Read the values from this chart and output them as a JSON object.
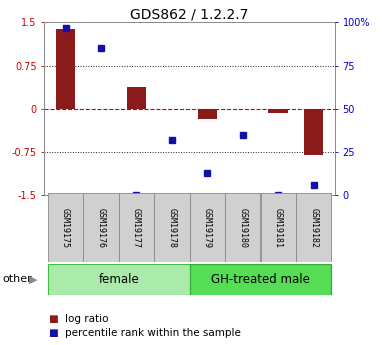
{
  "title": "GDS862 / 1.2.2.7",
  "samples": [
    "GSM19175",
    "GSM19176",
    "GSM19177",
    "GSM19178",
    "GSM19179",
    "GSM19180",
    "GSM19181",
    "GSM19182"
  ],
  "log_ratios": [
    1.38,
    0.0,
    0.38,
    0.0,
    -0.18,
    0.0,
    -0.07,
    -0.8
  ],
  "percentile_ranks": [
    97,
    85,
    0,
    32,
    13,
    35,
    0,
    6
  ],
  "ylim": [
    -1.5,
    1.5
  ],
  "yticks_left": [
    -1.5,
    -0.75,
    0,
    0.75,
    1.5
  ],
  "yticks_right": [
    0,
    25,
    50,
    75,
    100
  ],
  "groups": [
    {
      "label": "female",
      "start": 0,
      "end": 4,
      "color": "#AAEAAA",
      "edge": "#44BB44"
    },
    {
      "label": "GH-treated male",
      "start": 4,
      "end": 8,
      "color": "#55DD55",
      "edge": "#33AA33"
    }
  ],
  "bar_color": "#8B1A1A",
  "dot_color": "#1111AA",
  "hline_color": "#CC0000",
  "dotted_color": "#222222",
  "bg_color": "#FFFFFF",
  "title_fontsize": 10,
  "tick_fontsize": 7,
  "sample_fontsize": 6,
  "legend_fontsize": 7.5,
  "group_label_fontsize": 8.5,
  "other_label_fontsize": 8
}
